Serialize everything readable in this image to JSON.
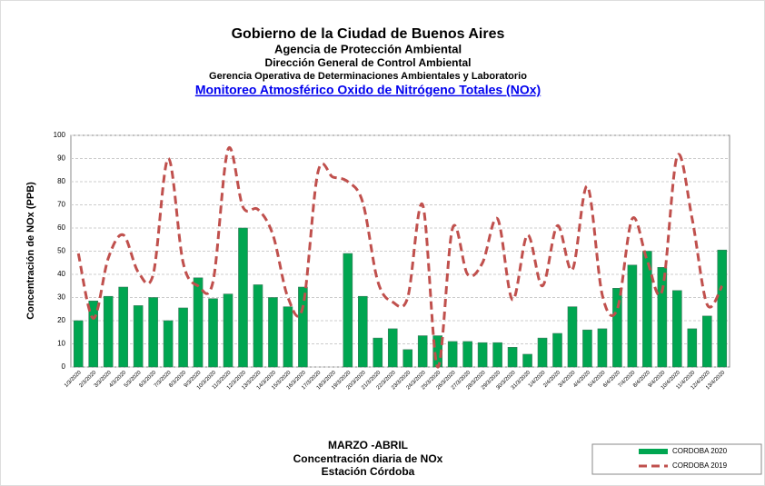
{
  "header": {
    "lines": [
      "Gobierno de la Ciudad de Buenos Aires",
      "Agencia de Protección Ambiental",
      "Dirección General de Control Ambiental",
      "Gerencia Operativa de  Determinaciones Ambientales y Laboratorio"
    ],
    "link": "Monitoreo Atmosférico  Oxido de Nitrógeno Totales (NOx)"
  },
  "footer": [
    "MARZO -ABRIL",
    "Concentración diaria de NOx",
    "Estación Córdoba"
  ],
  "chart_data": {
    "type": "bar_line",
    "y_label": "Concentración de NOx (PPB)",
    "categories": [
      "1/3/2020",
      "2/3/2020",
      "3/3/2020",
      "4/3/2020",
      "5/3/2020",
      "6/3/2020",
      "7/3/2020",
      "8/3/2020",
      "9/3/2020",
      "10/3/2020",
      "11/3/2020",
      "12/3/2020",
      "13/3/2020",
      "14/3/2020",
      "15/3/2020",
      "16/3/2020",
      "17/3/2020",
      "18/3/2020",
      "19/3/2020",
      "20/3/2020",
      "21/3/2020",
      "22/3/2020",
      "23/3/2020",
      "24/3/2020",
      "25/3/2020",
      "26/3/2020",
      "27/3/2020",
      "28/3/2020",
      "29/3/2020",
      "30/3/2020",
      "31/3/2020",
      "1/4/2020",
      "2/4/2020",
      "3/4/2020",
      "4/4/2020",
      "5/4/2020",
      "6/4/2020",
      "7/4/2020",
      "8/4/2020",
      "9/4/2020",
      "10/4/2020",
      "11/4/2020",
      "12/4/2020",
      "13/4/2020"
    ],
    "series": [
      {
        "name": "CORDOBA 2020",
        "kind": "bar",
        "color": "#00a651",
        "values": [
          20,
          28.5,
          30.5,
          34.5,
          26.5,
          30,
          20,
          25.5,
          38.5,
          29.5,
          31.5,
          60,
          35.5,
          30,
          26,
          34.5,
          null,
          null,
          49,
          30.5,
          12.5,
          16.5,
          7.5,
          13.5,
          13.5,
          11,
          11,
          10.5,
          10.5,
          8.5,
          5.5,
          12.5,
          14.5,
          26,
          16,
          16.5,
          34,
          44,
          50,
          43,
          33,
          16.5,
          22,
          50.5
        ]
      },
      {
        "name": "CORDOBA 2019",
        "kind": "line",
        "color": "#c0504d",
        "values": [
          49,
          21,
          47,
          57,
          41,
          40,
          90,
          45,
          35,
          37,
          94,
          69,
          68,
          57,
          30,
          26,
          84,
          82,
          80,
          71,
          37,
          28,
          30,
          70,
          0,
          60,
          40,
          45,
          64,
          29,
          57,
          35,
          61,
          42,
          78,
          31,
          25,
          64,
          46,
          33,
          91,
          64,
          27,
          35
        ]
      }
    ],
    "ylim": [
      0,
      100
    ],
    "yticks": [
      0,
      10,
      20,
      30,
      40,
      50,
      60,
      70,
      80,
      90,
      100
    ],
    "grid": true
  }
}
